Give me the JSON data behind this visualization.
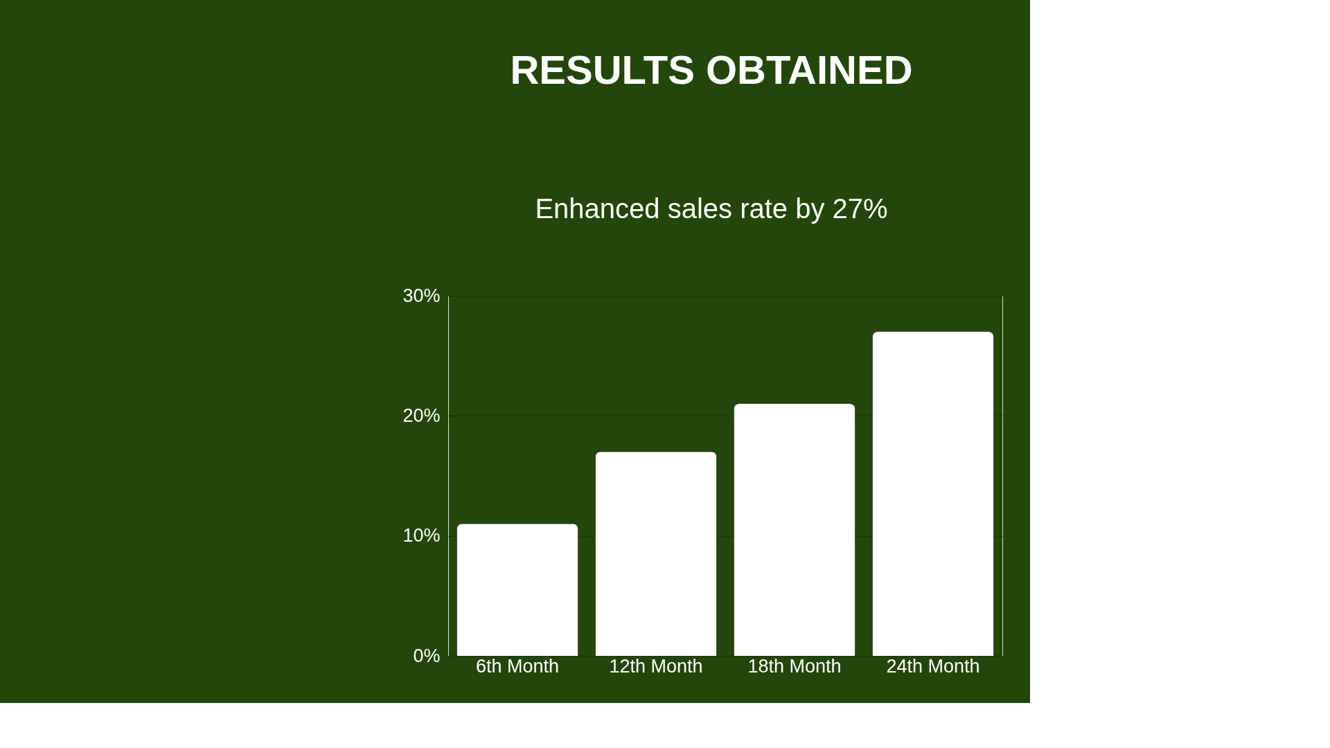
{
  "chart_data": {
    "type": "bar",
    "title": "RESULTS OBTAINED",
    "subtitle": "Enhanced sales rate by 27%",
    "categories": [
      "6th Month",
      "12th Month",
      "18th Month",
      "24th Month"
    ],
    "values": [
      11,
      17,
      21,
      27
    ],
    "color": "#ffffff",
    "ylim": [
      0,
      30
    ],
    "yticks": [
      {
        "value": 0,
        "label": "0%"
      },
      {
        "value": 10,
        "label": "10%"
      },
      {
        "value": 20,
        "label": "20%"
      },
      {
        "value": 30,
        "label": "30%"
      }
    ],
    "grid": "y"
  }
}
